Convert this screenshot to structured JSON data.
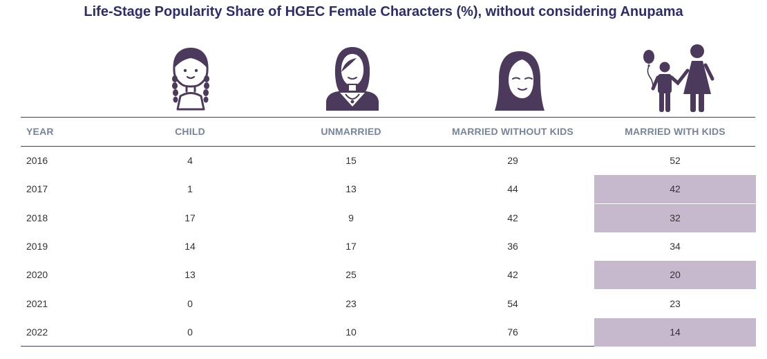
{
  "title": "Life-Stage Popularity Share of HGEC Female Characters (%), without considering Anupama",
  "colors": {
    "title": "#2c2d6b",
    "icon": "#4b3a5c",
    "header_text": "#76849a",
    "highlight": "#c6b8cd",
    "rule": "#3c3f70"
  },
  "icons": [
    "girl-with-braids-icon",
    "young-woman-icon",
    "long-hair-woman-icon",
    "parent-and-child-with-balloon-icon"
  ],
  "chart_data": {
    "type": "table",
    "columns": [
      "YEAR",
      "CHILD",
      "UNMARRIED",
      "MARRIED WITHOUT KIDS",
      "MARRIED WITH KIDS"
    ],
    "rows": [
      {
        "year": "2016",
        "values": [
          "4",
          "15",
          "29",
          "52"
        ],
        "highlight": false
      },
      {
        "year": "2017",
        "values": [
          "1",
          "13",
          "44",
          "42"
        ],
        "highlight": true
      },
      {
        "year": "2018",
        "values": [
          "17",
          "9",
          "42",
          "32"
        ],
        "highlight": true
      },
      {
        "year": "2019",
        "values": [
          "14",
          "17",
          "36",
          "34"
        ],
        "highlight": false
      },
      {
        "year": "2020",
        "values": [
          "13",
          "25",
          "42",
          "20"
        ],
        "highlight": true
      },
      {
        "year": "2021",
        "values": [
          "0",
          "23",
          "54",
          "23"
        ],
        "highlight": false
      },
      {
        "year": "2022",
        "values": [
          "0",
          "10",
          "76",
          "14"
        ],
        "highlight": true
      }
    ]
  }
}
